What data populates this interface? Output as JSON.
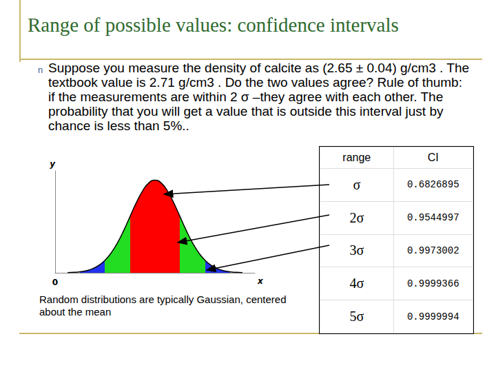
{
  "title": "Range of possible values: confidence intervals",
  "bullet": {
    "marker": "n",
    "text": "Suppose you measure the density of calcite as (2.65 ± 0.04) g/cm3 . The textbook value is 2.71 g/cm3 . Do the two values agree? Rule of thumb: if the measurements are within 2 σ –they agree with each other. The probability that you will get a value that is outside this interval just by chance is less than 5%.."
  },
  "chart_data": {
    "type": "line",
    "x_label": "x",
    "y_label": "y",
    "color": "#000000",
    "x": [
      0.5,
      0.75,
      1,
      1.25,
      1.5,
      1.75,
      2,
      2.25,
      2.5,
      2.75,
      3,
      3.25,
      3.5,
      3.75,
      4,
      4.25,
      4.5,
      4.75,
      5,
      5.25,
      5.5,
      5.75,
      6,
      6.25,
      6.5,
      6.75,
      7,
      7.25,
      7.5
    ],
    "values": [
      0.002,
      0.005,
      0.011,
      0.023,
      0.044,
      0.08,
      0.135,
      0.216,
      0.325,
      0.458,
      0.607,
      0.755,
      0.882,
      0.969,
      1,
      0.969,
      0.882,
      0.755,
      0.607,
      0.458,
      0.325,
      0.216,
      0.135,
      0.08,
      0.044,
      0.023,
      0.011,
      0.005,
      0.002
    ],
    "regions": [
      {
        "from": 1,
        "to": 2,
        "color": "#2233ee"
      },
      {
        "from": 2,
        "to": 3,
        "color": "#22dd22"
      },
      {
        "from": 3,
        "to": 5,
        "color": "#ff0000"
      },
      {
        "from": 5,
        "to": 6,
        "color": "#22dd22"
      },
      {
        "from": 6,
        "to": 7,
        "color": "#2233ee"
      }
    ],
    "xlim": [
      0,
      8
    ],
    "ylim": [
      0,
      1.1
    ],
    "xticks": [
      0
    ],
    "yticks": [],
    "tick_labels": "x",
    "grid": false
  },
  "caption": "Random distributions are typically Gaussian, centered about the mean",
  "table": {
    "header": [
      "range",
      "CI"
    ],
    "rows": [
      [
        "σ",
        0.6826895
      ],
      [
        "2σ",
        0.9544997
      ],
      [
        "3σ",
        0.9973002
      ],
      [
        "4σ",
        0.9999366
      ],
      [
        "5σ",
        0.9999994
      ]
    ]
  }
}
